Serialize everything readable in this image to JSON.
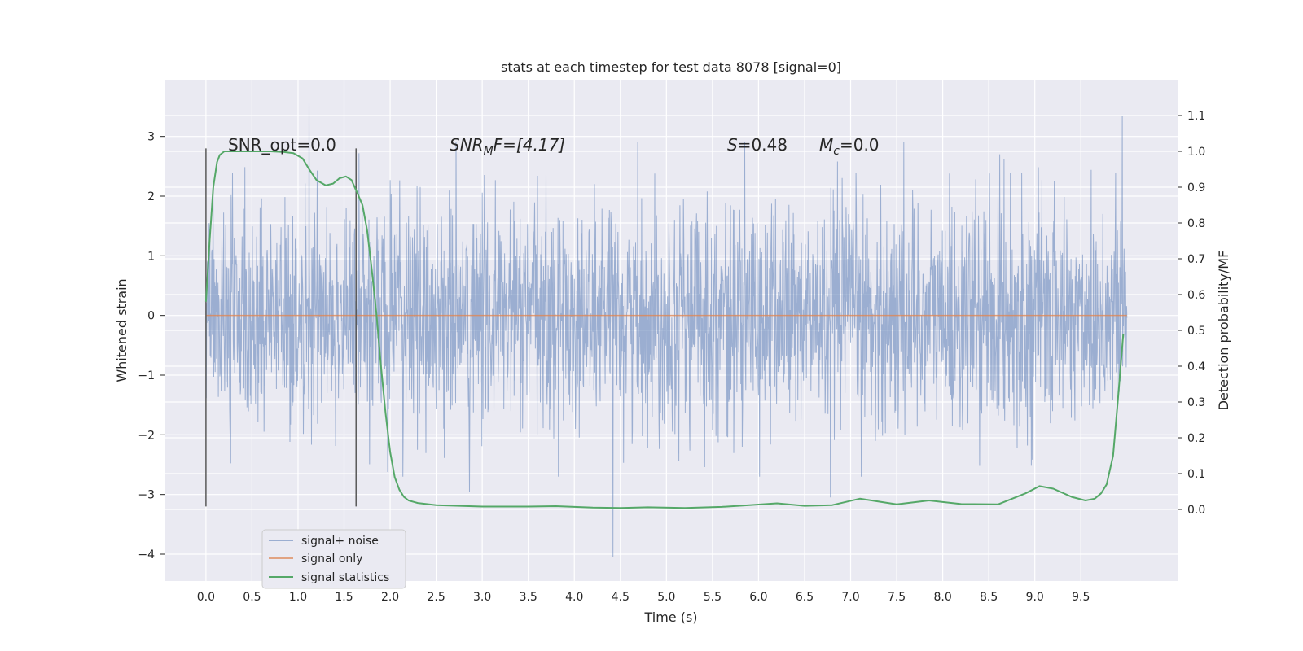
{
  "chart_data": {
    "type": "line",
    "title": "stats at each timestep for test data 8078 [signal=0]",
    "xlabel": "Time (s)",
    "ylabel": "Whitened strain",
    "y2label": "Detection probability/MF",
    "xlim": [
      -0.45,
      10.55
    ],
    "ylim": [
      -4.45,
      3.95
    ],
    "y2lim": [
      -0.2,
      1.2
    ],
    "xticks": [
      "0.0",
      "0.5",
      "1.0",
      "1.5",
      "2.0",
      "2.5",
      "3.0",
      "3.5",
      "4.0",
      "4.5",
      "5.0",
      "5.5",
      "6.0",
      "6.5",
      "7.0",
      "7.5",
      "8.0",
      "8.5",
      "9.0",
      "9.5"
    ],
    "yticks": [
      "−4",
      "−3",
      "−2",
      "−1",
      "0",
      "1",
      "2",
      "3"
    ],
    "y2ticks": [
      "0.0",
      "0.1",
      "0.2",
      "0.3",
      "0.4",
      "0.5",
      "0.6",
      "0.7",
      "0.8",
      "0.9",
      "1.0",
      "1.1"
    ],
    "grid": true,
    "legend_location": "lower-left",
    "legend": [
      "signal+ noise",
      "signal only",
      "signal statistics"
    ],
    "colors": {
      "noise": "#4c72b0",
      "signal_only": "#dd8452",
      "statistics": "#55a868",
      "vlines": "#595959",
      "background": "#eaeaf2"
    },
    "annotations": {
      "snr_opt": "SNR_opt=0.0",
      "snr_mf_prefix": "SNR",
      "snr_mf_sub": "M",
      "snr_mf_suffix": "F=[4.17]",
      "s_prefix": "S",
      "s_value": "=0.48",
      "mc_prefix": "M",
      "mc_sub": "c",
      "mc_value": "=0.0"
    },
    "vlines_x": [
      0.0,
      1.63
    ],
    "signal_only": {
      "x": [
        0.0,
        10.0
      ],
      "y": [
        0.0,
        0.0
      ]
    },
    "noise_series": {
      "x_range": [
        0.0,
        10.0
      ],
      "approx_min": -4.1,
      "approx_max": 3.6,
      "spikes": [
        {
          "x": 1.12,
          "y": 3.62
        },
        {
          "x": 9.95,
          "y": 3.35
        },
        {
          "x": 4.42,
          "y": -4.05
        },
        {
          "x": 2.86,
          "y": -2.95
        },
        {
          "x": 6.78,
          "y": -3.05
        }
      ]
    },
    "statistics_series": {
      "name": "signal statistics",
      "x": [
        0.0,
        0.04,
        0.08,
        0.12,
        0.15,
        0.2,
        0.3,
        0.4,
        0.55,
        0.7,
        0.85,
        0.95,
        1.05,
        1.12,
        1.2,
        1.3,
        1.38,
        1.45,
        1.52,
        1.58,
        1.65,
        1.7,
        1.75,
        1.8,
        1.85,
        1.9,
        1.95,
        2.0,
        2.05,
        2.1,
        2.15,
        2.2,
        2.3,
        2.5,
        3.0,
        3.5,
        3.8,
        4.2,
        4.5,
        4.8,
        5.2,
        5.6,
        5.9,
        6.2,
        6.5,
        6.8,
        7.1,
        7.5,
        7.85,
        8.2,
        8.6,
        8.9,
        9.05,
        9.2,
        9.4,
        9.55,
        9.65,
        9.72,
        9.78,
        9.85,
        9.9,
        9.96
      ],
      "y": [
        0.58,
        0.75,
        0.9,
        0.97,
        0.99,
        1.0,
        1.0,
        1.0,
        1.0,
        1.0,
        0.998,
        0.995,
        0.98,
        0.95,
        0.92,
        0.905,
        0.91,
        0.925,
        0.93,
        0.92,
        0.88,
        0.85,
        0.78,
        0.67,
        0.55,
        0.4,
        0.27,
        0.16,
        0.09,
        0.055,
        0.035,
        0.025,
        0.018,
        0.012,
        0.008,
        0.008,
        0.009,
        0.005,
        0.004,
        0.006,
        0.004,
        0.007,
        0.012,
        0.017,
        0.01,
        0.012,
        0.03,
        0.014,
        0.025,
        0.015,
        0.014,
        0.045,
        0.065,
        0.058,
        0.035,
        0.025,
        0.03,
        0.045,
        0.07,
        0.15,
        0.3,
        0.49
      ]
    }
  }
}
